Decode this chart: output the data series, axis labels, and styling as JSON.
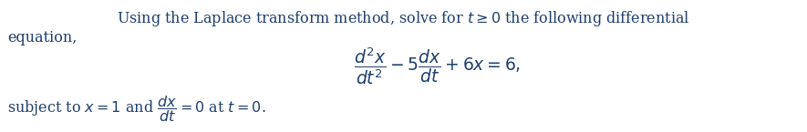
{
  "background_color": "#ffffff",
  "text_color": "#1f3f6e",
  "line1_left": "Using the Laplace transform method, solve for $t \\geq 0$ the following differential",
  "line2_text": "equation,",
  "equation_text": "$\\dfrac{d^2x}{dt^2} - 5\\dfrac{dx}{dt} + 6x = 6,$",
  "line3_text": "subject to $x = 1$ and $\\dfrac{dx}{dt} = 0$ at $t = 0$.",
  "fontsize_main": 11.5,
  "fontsize_eq": 13.5
}
